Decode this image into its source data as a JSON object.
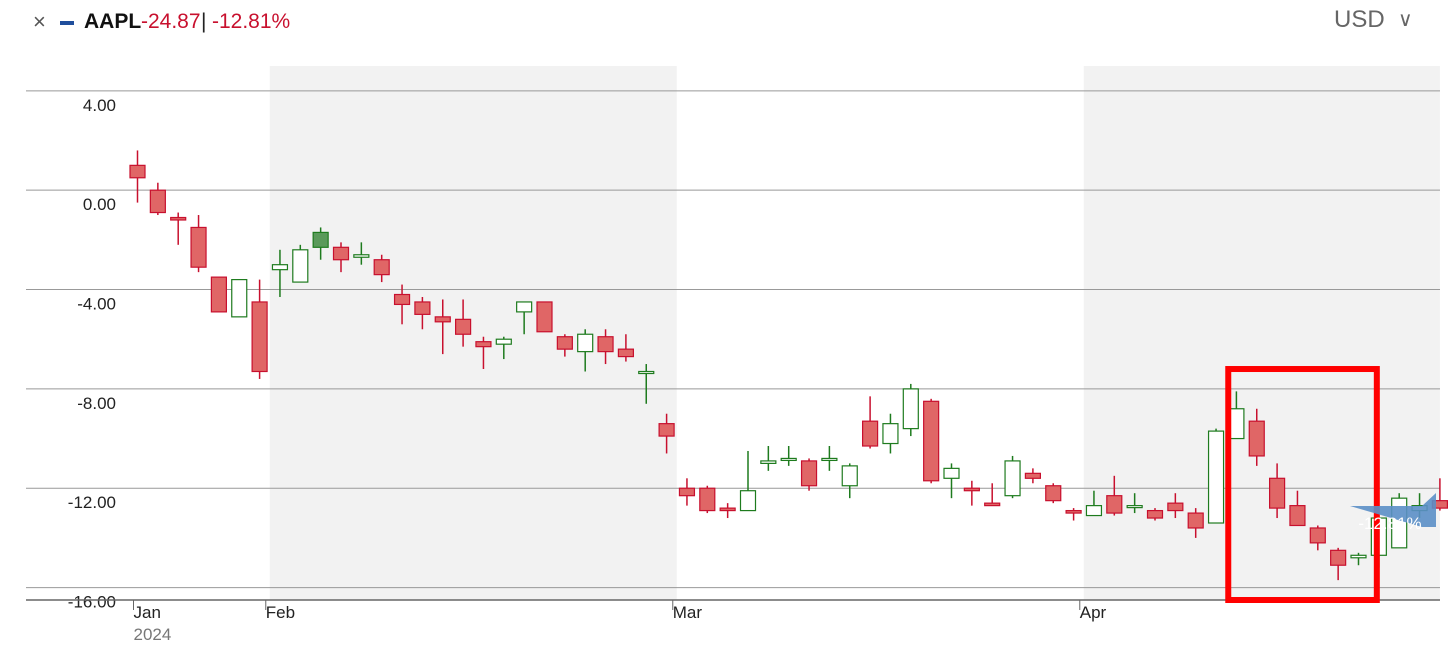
{
  "header": {
    "close_icon": "close-icon",
    "ticker": "AAPL",
    "change_value": "-24.87",
    "separator": "|",
    "change_percent": "-12.81%",
    "currency": "USD",
    "currency_caret": "chevron-down-icon",
    "series_color": "#1f4e9c",
    "down_color": "#c8102e"
  },
  "chart_data": {
    "type": "candlestick",
    "ylabel": "",
    "xlabel": "",
    "ylim": [
      -16.5,
      5
    ],
    "y_ticks": [
      4.0,
      0.0,
      -4.0,
      -8.0,
      -12.0,
      -16.0
    ],
    "y_tick_labels": [
      "4.00",
      "0.00",
      "-4.00",
      "-8.00",
      "-12.00",
      "-16.00"
    ],
    "x_labels": [
      {
        "label": "Jan",
        "sub": "2024",
        "index": 0
      },
      {
        "label": "Feb",
        "index": 6.5
      },
      {
        "label": "Mar",
        "index": 26.5
      },
      {
        "label": "Apr",
        "index": 46.5
      }
    ],
    "shaded_ranges": [
      [
        6.5,
        26.5
      ],
      [
        46.5,
        64
      ]
    ],
    "last_value_label": "-12.81%",
    "highlight_box": {
      "from_index": 53.6,
      "to_index": 60.9,
      "y_top": -7.2,
      "y_bottom": -16.5
    },
    "colors": {
      "up": "#1e7b1e",
      "down": "#c8102e",
      "down_fill": "#e06666",
      "up_fill_dark": "#5a9a5a",
      "label_bg": "#5b8fc7",
      "highlight": "#ff0000",
      "shade": "#f2f2f2"
    },
    "candles": [
      {
        "o": 1.0,
        "h": 1.6,
        "l": -0.5,
        "c": 0.5
      },
      {
        "o": 0.0,
        "h": 0.3,
        "l": -1.0,
        "c": -0.9
      },
      {
        "o": -1.1,
        "h": -0.9,
        "l": -2.2,
        "c": -1.2
      },
      {
        "o": -1.5,
        "h": -1.0,
        "l": -3.3,
        "c": -3.1
      },
      {
        "o": -3.5,
        "h": -3.5,
        "l": -4.9,
        "c": -4.9
      },
      {
        "o": -5.1,
        "h": -3.6,
        "l": -5.1,
        "c": -3.6
      },
      {
        "o": -4.5,
        "h": -3.6,
        "l": -7.6,
        "c": -7.3
      },
      {
        "o": -3.2,
        "h": -2.4,
        "l": -4.3,
        "c": -3.0
      },
      {
        "o": -3.7,
        "h": -2.2,
        "l": -3.7,
        "c": -2.4
      },
      {
        "o": -2.3,
        "h": -1.5,
        "l": -2.8,
        "c": -1.7,
        "fill": "dark"
      },
      {
        "o": -2.3,
        "h": -2.1,
        "l": -3.3,
        "c": -2.8
      },
      {
        "o": -2.7,
        "h": -2.1,
        "l": -3.0,
        "c": -2.6
      },
      {
        "o": -2.8,
        "h": -2.6,
        "l": -3.7,
        "c": -3.4
      },
      {
        "o": -4.2,
        "h": -3.8,
        "l": -5.4,
        "c": -4.6
      },
      {
        "o": -4.5,
        "h": -4.3,
        "l": -5.6,
        "c": -5.0
      },
      {
        "o": -5.1,
        "h": -4.4,
        "l": -6.6,
        "c": -5.3
      },
      {
        "o": -5.2,
        "h": -4.4,
        "l": -6.3,
        "c": -5.8
      },
      {
        "o": -6.1,
        "h": -5.9,
        "l": -7.2,
        "c": -6.3
      },
      {
        "o": -6.2,
        "h": -5.9,
        "l": -6.8,
        "c": -6.0
      },
      {
        "o": -4.9,
        "h": -4.6,
        "l": -5.8,
        "c": -4.5
      },
      {
        "o": -4.5,
        "h": -4.5,
        "l": -5.6,
        "c": -5.7
      },
      {
        "o": -5.9,
        "h": -5.8,
        "l": -6.7,
        "c": -6.4
      },
      {
        "o": -6.5,
        "h": -5.6,
        "l": -7.3,
        "c": -5.8
      },
      {
        "o": -5.9,
        "h": -5.6,
        "l": -7.0,
        "c": -6.5
      },
      {
        "o": -6.4,
        "h": -5.8,
        "l": -6.9,
        "c": -6.7
      },
      {
        "o": -7.3,
        "h": -7.0,
        "l": -8.6,
        "c": -7.3
      },
      {
        "o": -9.4,
        "h": -9.0,
        "l": -10.6,
        "c": -9.9
      },
      {
        "o": -12.0,
        "h": -11.6,
        "l": -12.7,
        "c": -12.3
      },
      {
        "o": -12.0,
        "h": -11.9,
        "l": -13.0,
        "c": -12.9
      },
      {
        "o": -12.8,
        "h": -12.6,
        "l": -13.2,
        "c": -12.9
      },
      {
        "o": -12.9,
        "h": -10.5,
        "l": -12.9,
        "c": -12.1
      },
      {
        "o": -11.0,
        "h": -10.3,
        "l": -11.3,
        "c": -10.9
      },
      {
        "o": -10.8,
        "h": -10.3,
        "l": -11.1,
        "c": -10.8
      },
      {
        "o": -10.9,
        "h": -10.8,
        "l": -12.1,
        "c": -11.9
      },
      {
        "o": -10.8,
        "h": -10.3,
        "l": -11.3,
        "c": -10.8
      },
      {
        "o": -11.9,
        "h": -11.0,
        "l": -12.4,
        "c": -11.1
      },
      {
        "o": -9.3,
        "h": -8.3,
        "l": -10.4,
        "c": -10.3,
        "fill": "dark"
      },
      {
        "o": -10.2,
        "h": -9.0,
        "l": -10.6,
        "c": -9.4
      },
      {
        "o": -9.6,
        "h": -7.8,
        "l": -9.9,
        "c": -8.0
      },
      {
        "o": -8.5,
        "h": -8.4,
        "l": -11.8,
        "c": -11.7
      },
      {
        "o": -11.6,
        "h": -11.0,
        "l": -12.4,
        "c": -11.2
      },
      {
        "o": -12.0,
        "h": -11.7,
        "l": -12.7,
        "c": -12.1
      },
      {
        "o": -12.6,
        "h": -11.8,
        "l": -12.7,
        "c": -12.7
      },
      {
        "o": -12.3,
        "h": -10.7,
        "l": -12.4,
        "c": -10.9
      },
      {
        "o": -11.4,
        "h": -11.2,
        "l": -11.8,
        "c": -11.6
      },
      {
        "o": -11.9,
        "h": -11.8,
        "l": -12.6,
        "c": -12.5
      },
      {
        "o": -12.9,
        "h": -12.8,
        "l": -13.3,
        "c": -13.0
      },
      {
        "o": -13.1,
        "h": -12.1,
        "l": -13.1,
        "c": -12.7
      },
      {
        "o": -12.3,
        "h": -11.5,
        "l": -13.1,
        "c": -13.0
      },
      {
        "o": -12.7,
        "h": -12.2,
        "l": -13.0,
        "c": -12.7
      },
      {
        "o": -12.9,
        "h": -12.8,
        "l": -13.3,
        "c": -13.2
      },
      {
        "o": -12.6,
        "h": -12.2,
        "l": -13.2,
        "c": -12.9
      },
      {
        "o": -13.0,
        "h": -12.8,
        "l": -14.0,
        "c": -13.6
      },
      {
        "o": -13.4,
        "h": -9.6,
        "l": -13.4,
        "c": -9.7
      },
      {
        "o": -10.0,
        "h": -8.1,
        "l": -10.0,
        "c": -8.8
      },
      {
        "o": -9.3,
        "h": -8.8,
        "l": -11.1,
        "c": -10.7
      },
      {
        "o": -11.6,
        "h": -11.0,
        "l": -13.2,
        "c": -12.8
      },
      {
        "o": -12.7,
        "h": -12.1,
        "l": -13.5,
        "c": -13.5
      },
      {
        "o": -13.6,
        "h": -13.5,
        "l": -14.5,
        "c": -14.2
      },
      {
        "o": -14.5,
        "h": -14.4,
        "l": -15.7,
        "c": -15.1
      },
      {
        "o": -14.8,
        "h": -14.6,
        "l": -15.1,
        "c": -14.7
      },
      {
        "o": -14.7,
        "h": -12.8,
        "l": -15.2,
        "c": -13.2
      },
      {
        "o": -14.4,
        "h": -12.2,
        "l": -14.4,
        "c": -12.4
      },
      {
        "o": -12.9,
        "h": -12.2,
        "l": -13.2,
        "c": -12.7
      },
      {
        "o": -12.5,
        "h": -11.6,
        "l": -12.9,
        "c": -12.8
      }
    ]
  }
}
